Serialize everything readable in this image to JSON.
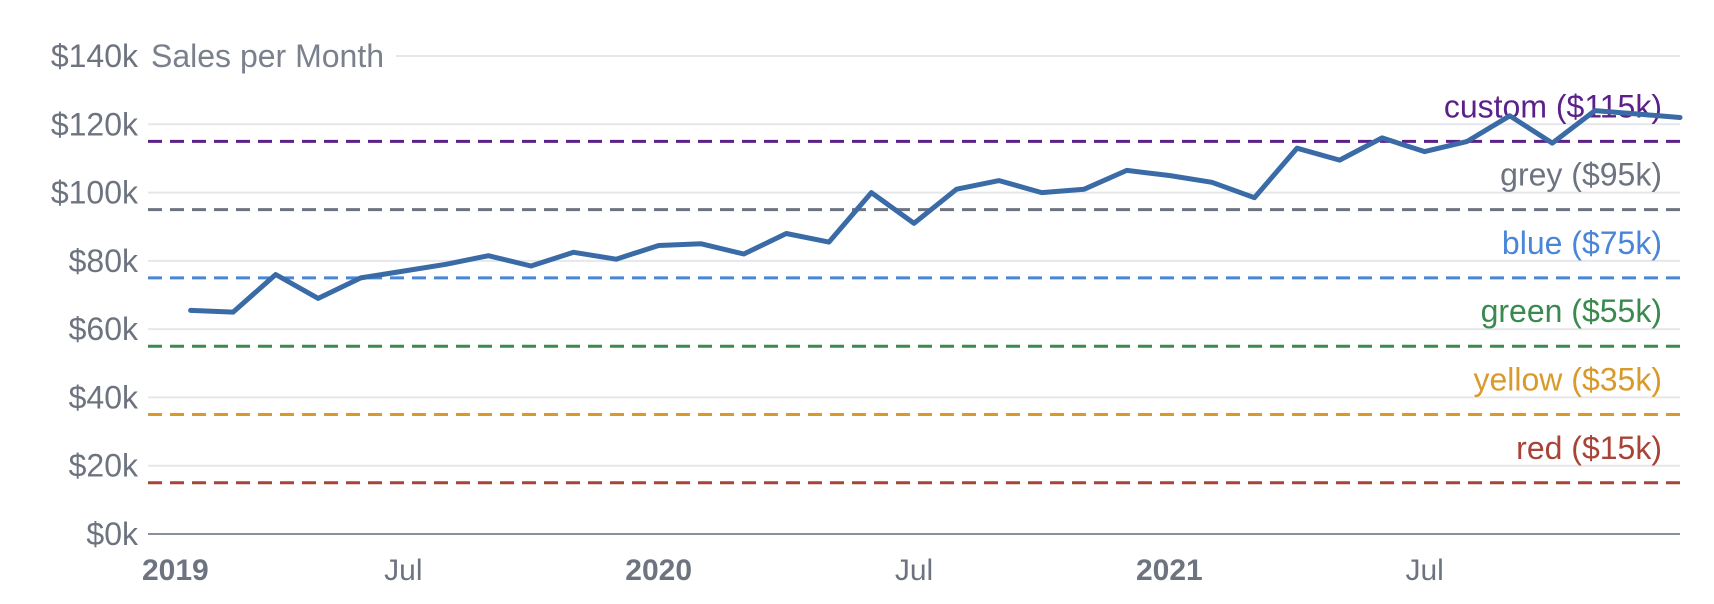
{
  "chart_data": {
    "type": "line",
    "title": "Sales per Month",
    "ylim": [
      0,
      140
    ],
    "y_ticks": [
      {
        "value": 0,
        "label": "$0k"
      },
      {
        "value": 20,
        "label": "$20k"
      },
      {
        "value": 40,
        "label": "$40k"
      },
      {
        "value": 60,
        "label": "$60k"
      },
      {
        "value": 80,
        "label": "$80k"
      },
      {
        "value": 100,
        "label": "$100k"
      },
      {
        "value": 120,
        "label": "$120k"
      },
      {
        "value": 140,
        "label": "$140k"
      }
    ],
    "x_range": [
      "2019-01",
      "2022-01"
    ],
    "x_ticks": [
      {
        "date": "2019-01",
        "label": "2019",
        "major": true
      },
      {
        "date": "2019-07",
        "label": "Jul",
        "major": false
      },
      {
        "date": "2020-01",
        "label": "2020",
        "major": true
      },
      {
        "date": "2020-07",
        "label": "Jul",
        "major": false
      },
      {
        "date": "2021-01",
        "label": "2021",
        "major": true
      },
      {
        "date": "2021-07",
        "label": "Jul",
        "major": false
      }
    ],
    "grid": true,
    "series": [
      {
        "color": "#3a6ba6",
        "points": [
          [
            "2019-02",
            65.5
          ],
          [
            "2019-03",
            65.0
          ],
          [
            "2019-04",
            76.0
          ],
          [
            "2019-05",
            69.0
          ],
          [
            "2019-06",
            75.0
          ],
          [
            "2019-07",
            77.0
          ],
          [
            "2019-08",
            79.0
          ],
          [
            "2019-09",
            81.5
          ],
          [
            "2019-10",
            78.5
          ],
          [
            "2019-11",
            82.5
          ],
          [
            "2019-12",
            80.5
          ],
          [
            "2020-01",
            84.5
          ],
          [
            "2020-02",
            85.0
          ],
          [
            "2020-03",
            82.0
          ],
          [
            "2020-04",
            88.0
          ],
          [
            "2020-05",
            85.5
          ],
          [
            "2020-06",
            100.0
          ],
          [
            "2020-07",
            91.0
          ],
          [
            "2020-08",
            101.0
          ],
          [
            "2020-09",
            103.5
          ],
          [
            "2020-10",
            100.0
          ],
          [
            "2020-11",
            101.0
          ],
          [
            "2020-12",
            106.5
          ],
          [
            "2021-01",
            105.0
          ],
          [
            "2021-02",
            103.0
          ],
          [
            "2021-03",
            98.5
          ],
          [
            "2021-04",
            113.0
          ],
          [
            "2021-05",
            109.5
          ],
          [
            "2021-06",
            116.0
          ],
          [
            "2021-07",
            112.0
          ],
          [
            "2021-08",
            115.0
          ],
          [
            "2021-09",
            122.5
          ],
          [
            "2021-10",
            114.5
          ],
          [
            "2021-11",
            124.0
          ],
          [
            "2021-12",
            123.0
          ],
          [
            "2022-01",
            122.0
          ]
        ]
      }
    ],
    "reference_lines": [
      {
        "value": 115,
        "label": "custom ($115k)",
        "color": "#5c2189"
      },
      {
        "value": 95,
        "label": "grey ($95k)",
        "color": "#6d7480"
      },
      {
        "value": 75,
        "label": "blue ($75k)",
        "color": "#4a86d8"
      },
      {
        "value": 55,
        "label": "green ($55k)",
        "color": "#3a8a50"
      },
      {
        "value": 35,
        "label": "yellow ($35k)",
        "color": "#d99a2b"
      },
      {
        "value": 15,
        "label": "red ($15k)",
        "color": "#a84338"
      }
    ]
  }
}
